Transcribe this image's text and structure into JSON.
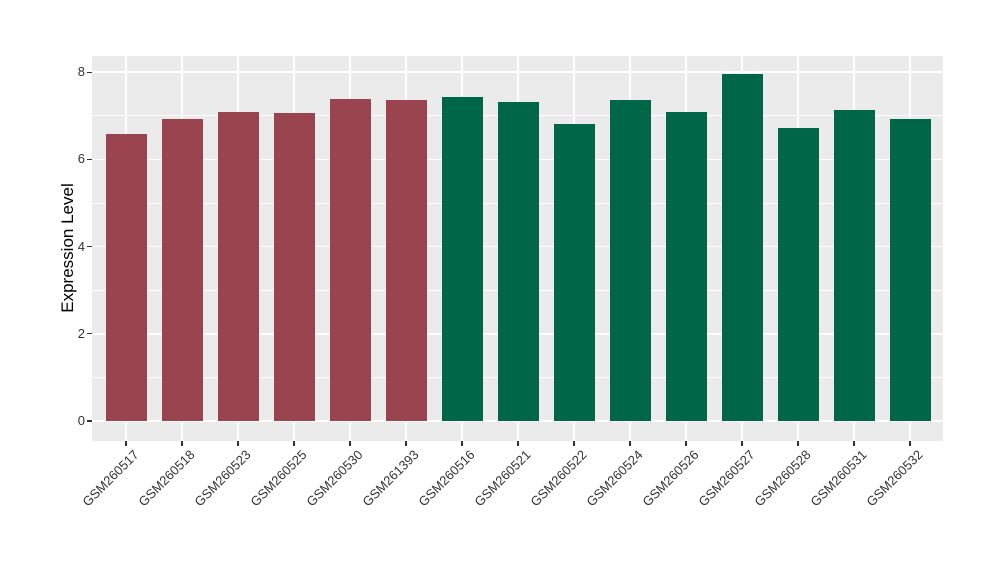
{
  "chart_data": {
    "type": "bar",
    "title": "",
    "xlabel": "",
    "ylabel": "Expression Level",
    "categories": [
      "GSM260517",
      "GSM260518",
      "GSM260523",
      "GSM260525",
      "GSM260530",
      "GSM261393",
      "GSM260516",
      "GSM260521",
      "GSM260522",
      "GSM260524",
      "GSM260526",
      "GSM260527",
      "GSM260528",
      "GSM260531",
      "GSM260532"
    ],
    "values": [
      6.59,
      6.92,
      7.08,
      7.06,
      7.39,
      7.35,
      7.44,
      7.32,
      6.82,
      7.36,
      7.08,
      7.96,
      6.72,
      7.14,
      6.93
    ],
    "bar_colors": [
      "#9A4450",
      "#9A4450",
      "#9A4450",
      "#9A4450",
      "#9A4450",
      "#9A4450",
      "#006648",
      "#006648",
      "#006648",
      "#006648",
      "#006648",
      "#006648",
      "#006648",
      "#006648",
      "#006648"
    ],
    "color_groups": [
      {
        "color": "#9A4450",
        "count": 6
      },
      {
        "color": "#006648",
        "count": 9
      }
    ],
    "ylim": [
      -0.46,
      8.37
    ],
    "yticks": [
      0,
      2,
      4,
      6,
      8
    ],
    "yticks_minor": [
      1,
      3,
      5,
      7
    ],
    "grid": "on",
    "legend": "none",
    "panel_bg": "#EBEBEB",
    "gridline_color": "#ffffff"
  }
}
